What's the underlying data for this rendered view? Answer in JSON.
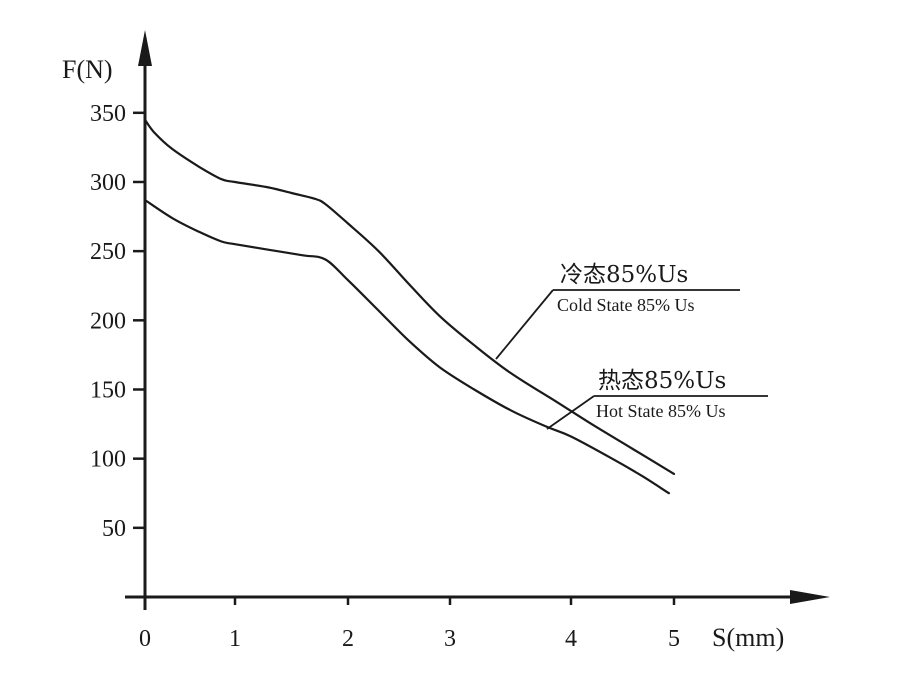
{
  "chart_data": {
    "type": "line",
    "xlabel": "S(mm)",
    "ylabel": "F(N)",
    "xlim": [
      0,
      6.5
    ],
    "ylim": [
      0,
      370
    ],
    "x_ticks": [
      0,
      1,
      2,
      3,
      4,
      5
    ],
    "x_tick_labels": [
      "0",
      "1",
      "2",
      "3",
      "4",
      "5"
    ],
    "y_ticks": [
      50,
      100,
      150,
      200,
      250,
      300,
      350
    ],
    "y_tick_labels": [
      "50",
      "100",
      "150",
      "200",
      "250",
      "300",
      "350"
    ],
    "grid": false,
    "legend": "none",
    "series": [
      {
        "name": "冷态85%Us",
        "name_en": "Cold State 85% Us",
        "color": "#1a1a1a",
        "points": [
          [
            0,
            345
          ],
          [
            0.1,
            336
          ],
          [
            0.3,
            324
          ],
          [
            0.6,
            311
          ],
          [
            0.85,
            302
          ],
          [
            1.0,
            300
          ],
          [
            1.3,
            296
          ],
          [
            1.5,
            292
          ],
          [
            1.7,
            288
          ],
          [
            1.8,
            284
          ],
          [
            2.0,
            270
          ],
          [
            2.3,
            250
          ],
          [
            2.6,
            226
          ],
          [
            2.9,
            203
          ],
          [
            3.2,
            182
          ],
          [
            3.5,
            162
          ],
          [
            3.9,
            140
          ],
          [
            4.2,
            125
          ],
          [
            4.6,
            107
          ],
          [
            5.0,
            89
          ]
        ]
      },
      {
        "name": "热态85%Us",
        "name_en": "Hot State 85% Us",
        "color": "#1a1a1a",
        "points": [
          [
            0,
            287
          ],
          [
            0.3,
            274
          ],
          [
            0.6,
            264
          ],
          [
            0.85,
            257
          ],
          [
            1.0,
            255
          ],
          [
            1.3,
            251
          ],
          [
            1.6,
            247
          ],
          [
            1.8,
            244
          ],
          [
            2.0,
            229
          ],
          [
            2.3,
            207
          ],
          [
            2.6,
            185
          ],
          [
            2.9,
            166
          ],
          [
            3.2,
            150
          ],
          [
            3.5,
            135
          ],
          [
            3.8,
            123
          ],
          [
            4.0,
            116
          ],
          [
            4.4,
            100
          ],
          [
            4.7,
            87
          ],
          [
            4.95,
            75
          ]
        ]
      }
    ],
    "annotations": [
      {
        "series": 0,
        "text_zh": "冷态85%Us",
        "text_en": "Cold State 85% Us",
        "at_x": 3.3
      },
      {
        "series": 1,
        "text_zh": "热态85%Us",
        "text_en": "Hot State 85% Us",
        "at_x": 3.75
      }
    ]
  }
}
